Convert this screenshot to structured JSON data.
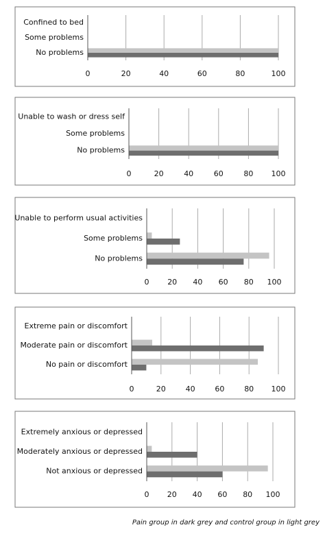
{
  "chart_data": [
    {
      "type": "bar",
      "orientation": "horizontal",
      "categories": [
        "Confined to bed",
        "Some problems",
        "No problems"
      ],
      "series": [
        {
          "color": "#c4c4c4",
          "values": [
            0,
            0,
            100
          ]
        },
        {
          "color": "#6e6e6e",
          "values": [
            0,
            0,
            100
          ]
        }
      ],
      "xlim": [
        0,
        100
      ],
      "xticks": [
        0,
        20,
        40,
        60,
        80,
        100
      ],
      "grid": true
    },
    {
      "type": "bar",
      "orientation": "horizontal",
      "categories": [
        "Unable to wash or dress self",
        "Some problems",
        "No problems"
      ],
      "series": [
        {
          "color": "#c4c4c4",
          "values": [
            0,
            0,
            100
          ]
        },
        {
          "color": "#6e6e6e",
          "values": [
            0,
            0,
            100
          ]
        }
      ],
      "xlim": [
        0,
        100
      ],
      "xticks": [
        0,
        20,
        40,
        60,
        80,
        100
      ],
      "grid": true
    },
    {
      "type": "bar",
      "orientation": "horizontal",
      "categories": [
        "Unable to perform usual activities",
        "Some problems",
        "No problems"
      ],
      "series": [
        {
          "color": "#c4c4c4",
          "values": [
            0,
            4,
            96
          ]
        },
        {
          "color": "#6e6e6e",
          "values": [
            0,
            26,
            76
          ]
        }
      ],
      "xlim": [
        0,
        100
      ],
      "xticks": [
        0,
        20,
        40,
        60,
        80,
        100
      ],
      "grid": true
    },
    {
      "type": "bar",
      "orientation": "horizontal",
      "categories": [
        "Extreme pain or discomfort",
        "Moderate pain or discomfort",
        "No pain or discomfort"
      ],
      "series": [
        {
          "color": "#c4c4c4",
          "values": [
            0,
            14,
            86
          ]
        },
        {
          "color": "#6e6e6e",
          "values": [
            0,
            90,
            10
          ]
        }
      ],
      "xlim": [
        0,
        100
      ],
      "xticks": [
        0,
        20,
        40,
        60,
        80,
        100
      ],
      "grid": true
    },
    {
      "type": "bar",
      "orientation": "horizontal",
      "categories": [
        "Extremely anxious or depressed",
        "Moderately anxious or depressed",
        "Not anxious or depressed"
      ],
      "series": [
        {
          "color": "#c4c4c4",
          "values": [
            0,
            4,
            96
          ]
        },
        {
          "color": "#6e6e6e",
          "values": [
            0,
            40,
            60
          ]
        }
      ],
      "xlim": [
        0,
        100
      ],
      "xticks": [
        0,
        20,
        40,
        60,
        80,
        100
      ],
      "grid": true
    }
  ],
  "caption": "Pain group in dark grey and control group in light grey"
}
